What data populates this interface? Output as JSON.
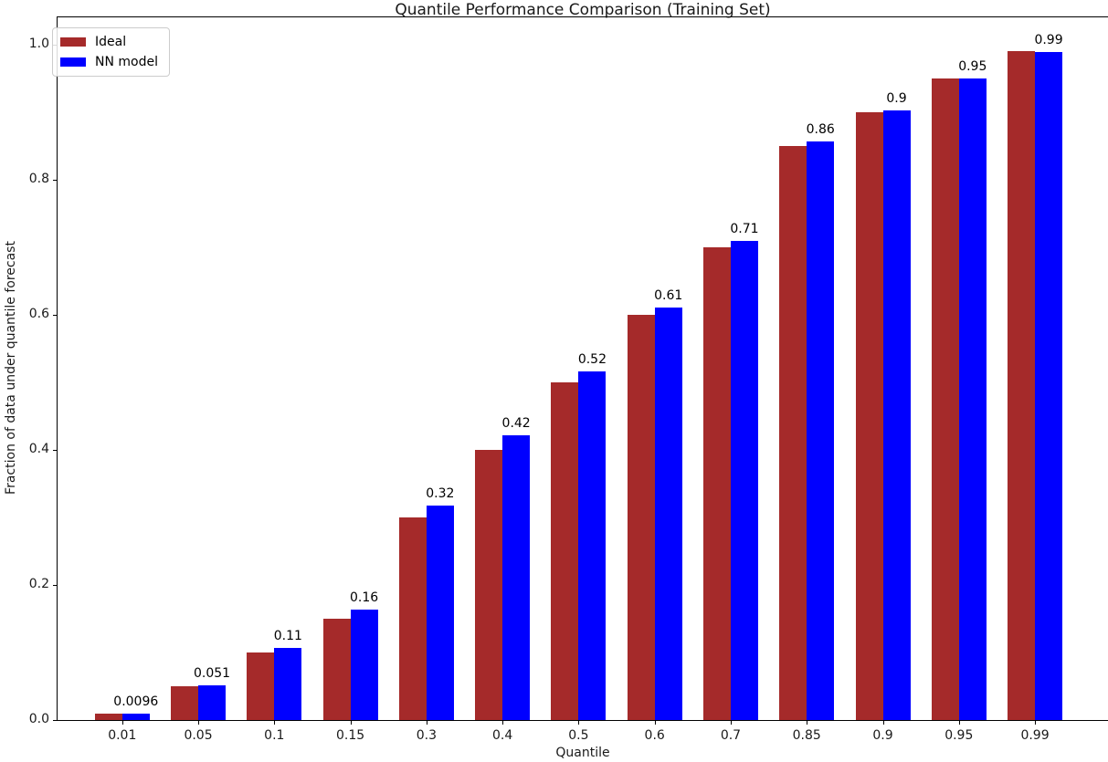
{
  "chart_data": {
    "type": "bar",
    "title": "Quantile Performance Comparison (Training Set)",
    "xlabel": "Quantile",
    "ylabel": "Fraction of data under quantile forecast",
    "categories": [
      "0.01",
      "0.05",
      "0.1",
      "0.15",
      "0.3",
      "0.4",
      "0.5",
      "0.6",
      "0.7",
      "0.85",
      "0.9",
      "0.95",
      "0.99"
    ],
    "series": [
      {
        "name": "Ideal",
        "color": "#A52A2A",
        "values": [
          0.01,
          0.05,
          0.1,
          0.15,
          0.3,
          0.4,
          0.5,
          0.6,
          0.7,
          0.85,
          0.9,
          0.95,
          0.99
        ]
      },
      {
        "name": "NN model",
        "color": "#0000FF",
        "values": [
          0.0096,
          0.051,
          0.107,
          0.163,
          0.318,
          0.422,
          0.516,
          0.611,
          0.709,
          0.857,
          0.903,
          0.95,
          0.989
        ]
      }
    ],
    "bar_labels": [
      "0.0096",
      "0.051",
      "0.11",
      "0.16",
      "0.32",
      "0.42",
      "0.52",
      "0.61",
      "0.71",
      "0.86",
      "0.9",
      "0.95",
      "0.99"
    ],
    "yticks": [
      "0.0",
      "0.2",
      "0.4",
      "0.6",
      "0.8",
      "1.0"
    ],
    "ylim": [
      0,
      1.042
    ],
    "grid": false,
    "legend_position": "upper-left"
  }
}
